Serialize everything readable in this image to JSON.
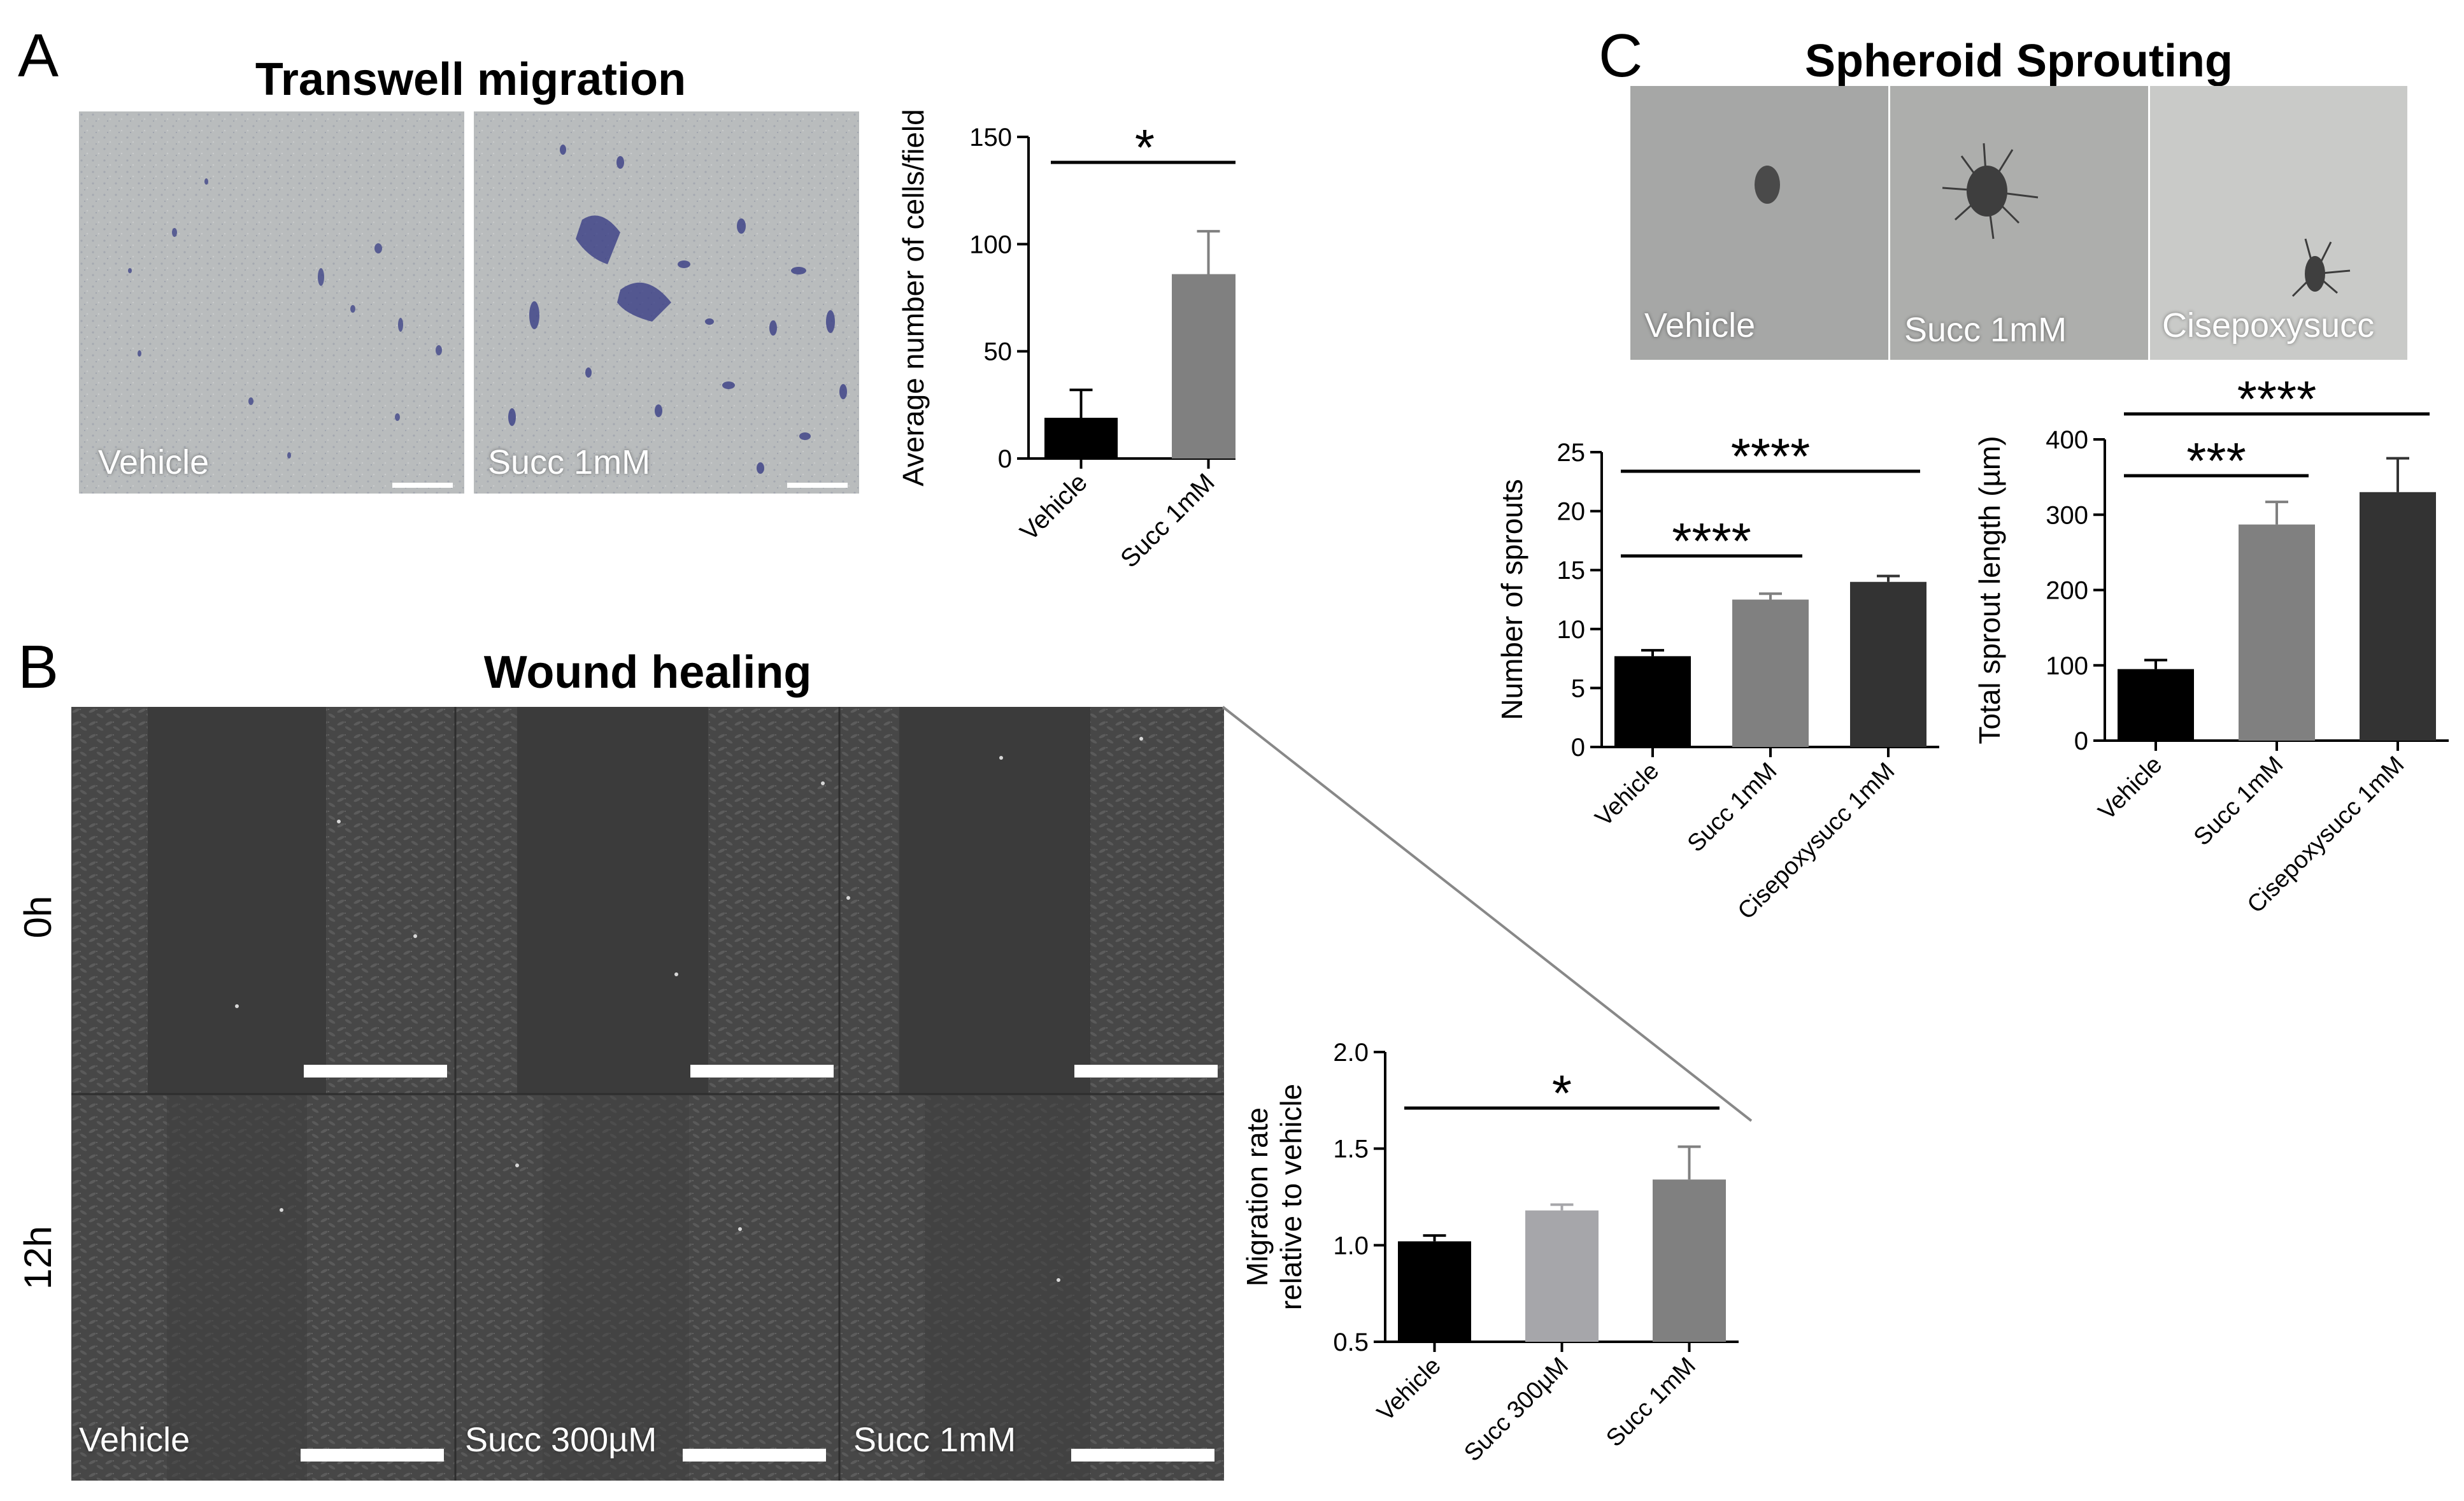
{
  "panels": {
    "A": {
      "letter": "A",
      "title": "Transwell migration",
      "image_labels": [
        "Vehicle",
        "Succ 1mM"
      ]
    },
    "B": {
      "letter": "B",
      "title": "Wound healing",
      "row_labels": [
        "0h",
        "12h"
      ],
      "image_labels": [
        "Vehicle",
        "Succ 300µM",
        "Succ 1mM"
      ]
    },
    "C": {
      "letter": "C",
      "title": "Spheroid Sprouting",
      "image_labels": [
        "Vehicle",
        "Succ 1mM",
        "Cisepoxysucc"
      ]
    }
  },
  "colors": {
    "black_bar": "#000000",
    "grey_bar": "#808080",
    "light_grey_bar": "#a6a6aa",
    "dark_grey_bar": "#333333",
    "transwell_bg": "#b9bcbd",
    "transwell_stain": "#3a3f86",
    "wound_bg": "#3d3d3d",
    "spheroid_bg": "#a9aaa9"
  },
  "chart_data": [
    {
      "id": "transwell",
      "type": "bar",
      "categories": [
        "Vehicle",
        "Succ 1mM"
      ],
      "values": [
        19,
        86
      ],
      "errors": [
        13,
        20
      ],
      "bar_colors": [
        "#000000",
        "#808080"
      ],
      "ylabel": "Average number of cells/field",
      "ylim": [
        0,
        150
      ],
      "yticks": [
        "0",
        "50",
        "100",
        "150"
      ],
      "significance": [
        {
          "from": 0,
          "to": 1,
          "label": "*"
        }
      ]
    },
    {
      "id": "wound",
      "type": "bar",
      "categories": [
        "Vehicle",
        "Succ 300µM",
        "Succ 1mM"
      ],
      "values": [
        1.02,
        1.18,
        1.34
      ],
      "errors": [
        0.03,
        0.03,
        0.17
      ],
      "bar_colors": [
        "#000000",
        "#a6a6aa",
        "#808080"
      ],
      "ylabel": [
        "Migration rate",
        "relative to vehicle"
      ],
      "ylim": [
        0.5,
        2.0
      ],
      "yticks": [
        "0.5",
        "1.0",
        "1.5",
        "2.0"
      ],
      "significance": [
        {
          "from": 0,
          "to": 2,
          "label": "*"
        }
      ]
    },
    {
      "id": "sprouts",
      "type": "bar",
      "categories": [
        "Vehicle",
        "Succ 1mM",
        "Cisepoxysucc 1mM"
      ],
      "values": [
        7.7,
        12.5,
        14.0
      ],
      "errors": [
        0.5,
        0.5,
        0.5
      ],
      "bar_colors": [
        "#000000",
        "#808080",
        "#333333"
      ],
      "ylabel": "Number of sprouts",
      "ylim": [
        0,
        25
      ],
      "yticks": [
        "0",
        "5",
        "10",
        "15",
        "20",
        "25"
      ],
      "significance": [
        {
          "from": 0,
          "to": 1,
          "label": "****"
        },
        {
          "from": 0,
          "to": 2,
          "label": "****"
        }
      ]
    },
    {
      "id": "length",
      "type": "bar",
      "categories": [
        "Vehicle",
        "Succ 1mM",
        "Cisepoxysucc 1mM"
      ],
      "values": [
        95,
        287,
        330
      ],
      "errors": [
        12,
        30,
        45
      ],
      "bar_colors": [
        "#000000",
        "#808080",
        "#333333"
      ],
      "ylabel": "Total sprout length (µm)",
      "ylim": [
        0,
        400
      ],
      "yticks": [
        "0",
        "100",
        "200",
        "300",
        "400"
      ],
      "significance": [
        {
          "from": 0,
          "to": 1,
          "label": "***"
        },
        {
          "from": 0,
          "to": 2,
          "label": "****"
        }
      ]
    }
  ]
}
